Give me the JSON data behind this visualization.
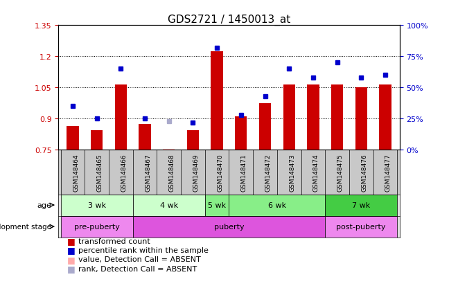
{
  "title": "GDS2721 / 1450013_at",
  "samples": [
    "GSM148464",
    "GSM148465",
    "GSM148466",
    "GSM148467",
    "GSM148468",
    "GSM148469",
    "GSM148470",
    "GSM148471",
    "GSM148472",
    "GSM148473",
    "GSM148474",
    "GSM148475",
    "GSM148476",
    "GSM148477"
  ],
  "red_values": [
    0.865,
    0.845,
    1.065,
    0.875,
    null,
    0.845,
    1.225,
    0.91,
    0.975,
    1.065,
    1.065,
    1.065,
    1.05,
    1.065
  ],
  "absent_red_values": [
    null,
    null,
    null,
    null,
    0.755,
    null,
    null,
    null,
    null,
    null,
    null,
    null,
    null,
    null
  ],
  "blue_pct": [
    35,
    25,
    65,
    25,
    null,
    22,
    82,
    28,
    43,
    65,
    58,
    70,
    58,
    60
  ],
  "absent_blue_pct": [
    null,
    null,
    null,
    null,
    23,
    null,
    null,
    null,
    null,
    null,
    null,
    null,
    null,
    null
  ],
  "red_color": "#cc0000",
  "blue_color": "#0000cc",
  "absent_red_color": "#ffaaaa",
  "absent_blue_color": "#aaaacc",
  "ylim_left": [
    0.75,
    1.35
  ],
  "ylim_right": [
    0,
    100
  ],
  "yticks_left": [
    0.75,
    0.9,
    1.05,
    1.2,
    1.35
  ],
  "ytick_labels_left": [
    "0.75",
    "0.9",
    "1.05",
    "1.2",
    "1.35"
  ],
  "yticks_right": [
    0,
    25,
    50,
    75,
    100
  ],
  "ytick_labels_right": [
    "0%",
    "25%",
    "50%",
    "75%",
    "100%"
  ],
  "age_groups": [
    {
      "label": "3 wk",
      "start": 0,
      "end": 2,
      "color": "#ccffcc"
    },
    {
      "label": "4 wk",
      "start": 3,
      "end": 5,
      "color": "#ccffcc"
    },
    {
      "label": "5 wk",
      "start": 6,
      "end": 6,
      "color": "#88ee88"
    },
    {
      "label": "6 wk",
      "start": 7,
      "end": 10,
      "color": "#88ee88"
    },
    {
      "label": "7 wk",
      "start": 11,
      "end": 13,
      "color": "#44cc44"
    }
  ],
  "dev_groups": [
    {
      "label": "pre-puberty",
      "start": 0,
      "end": 2,
      "color": "#ee88ee"
    },
    {
      "label": "puberty",
      "start": 3,
      "end": 10,
      "color": "#dd55dd"
    },
    {
      "label": "post-puberty",
      "start": 11,
      "end": 13,
      "color": "#ee88ee"
    }
  ],
  "legend_items": [
    {
      "color": "#cc0000",
      "label": "transformed count"
    },
    {
      "color": "#0000cc",
      "label": "percentile rank within the sample"
    },
    {
      "color": "#ffaaaa",
      "label": "value, Detection Call = ABSENT"
    },
    {
      "color": "#aaaacc",
      "label": "rank, Detection Call = ABSENT"
    }
  ]
}
